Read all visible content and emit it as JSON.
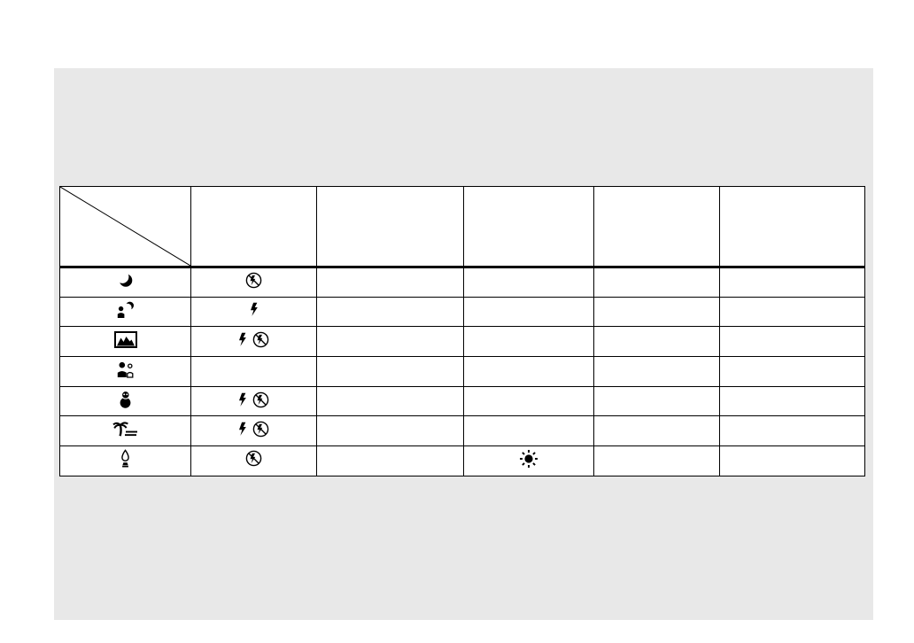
{
  "document": {
    "kind": "camera-manual-scene-mode-table-page",
    "visible_text": ""
  },
  "colors": {
    "panel_background": "#e8e8e8",
    "table_line": "#000000",
    "cell_background": "#ffffff",
    "icon_color": "#000000"
  },
  "table": {
    "columns": [
      {
        "header_text": "",
        "has_diagonal_slash": true
      },
      {
        "header_text": ""
      },
      {
        "header_text": ""
      },
      {
        "header_text": ""
      },
      {
        "header_text": ""
      },
      {
        "header_text": ""
      }
    ],
    "rows": [
      {
        "scene_mode": "twilight",
        "cells": [
          [
            "twilight-moon-icon"
          ],
          [
            "flash-off-icon"
          ],
          [],
          [],
          [],
          []
        ]
      },
      {
        "scene_mode": "twilight-portrait",
        "cells": [
          [
            "twilight-portrait-icon"
          ],
          [
            "flash-on-icon"
          ],
          [],
          [],
          [],
          []
        ]
      },
      {
        "scene_mode": "landscape",
        "cells": [
          [
            "landscape-icon"
          ],
          [
            "flash-on-icon",
            "flash-off-icon"
          ],
          [],
          [],
          [],
          []
        ]
      },
      {
        "scene_mode": "soft-snap",
        "cells": [
          [
            "soft-snap-icon"
          ],
          [],
          [],
          [],
          [],
          []
        ]
      },
      {
        "scene_mode": "snow",
        "cells": [
          [
            "snow-icon"
          ],
          [
            "flash-on-icon",
            "flash-off-icon"
          ],
          [],
          [],
          [],
          []
        ]
      },
      {
        "scene_mode": "beach",
        "cells": [
          [
            "beach-icon"
          ],
          [
            "flash-on-icon",
            "flash-off-icon"
          ],
          [],
          [],
          [],
          []
        ]
      },
      {
        "scene_mode": "candle",
        "cells": [
          [
            "candle-icon"
          ],
          [
            "flash-off-icon"
          ],
          [],
          [
            "sun-icon"
          ],
          [],
          []
        ]
      }
    ]
  }
}
